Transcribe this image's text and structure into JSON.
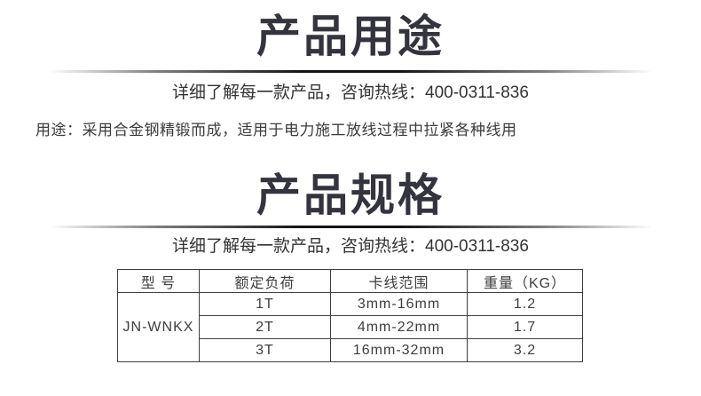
{
  "section_usage": {
    "title": "产品用途",
    "hotline": "详细了解每一款产品，咨询热线：400-0311-836",
    "usage_line": "用途：采用合金钢精锻而成，适用于电力施工放线过程中拉紧各种线用"
  },
  "section_specs": {
    "title": "产品规格",
    "hotline": "详细了解每一款产品，咨询热线：400-0311-836"
  },
  "spec_table": {
    "headers": [
      "型 号",
      "额定负荷",
      "卡线范围",
      "重量（KG）"
    ],
    "model": "JN-WNKX",
    "rows": [
      {
        "load": "1T",
        "range": "3mm-16mm",
        "weight": "1.2"
      },
      {
        "load": "2T",
        "range": "4mm-22mm",
        "weight": "1.7"
      },
      {
        "load": "3T",
        "range": "16mm-32mm",
        "weight": "3.2"
      }
    ]
  },
  "colors": {
    "heading": "#34343f",
    "body_text": "#333333",
    "table_border": "#3e3e3e"
  }
}
